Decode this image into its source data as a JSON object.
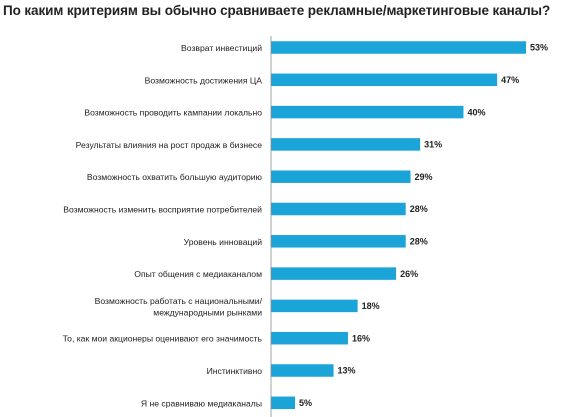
{
  "chart_data": {
    "type": "bar",
    "orientation": "horizontal",
    "title": "По каким критериям вы обычно сравниваете рекламные/маркетинговые каналы?",
    "categories": [
      "Возврат инвестиций",
      "Возможность достижения ЦА",
      "Возможность проводить кампании локально",
      "Результаты влияния на рост продаж в бизнесе",
      "Возможность охватить большую аудиторию",
      "Возможность изменить восприятие потребителей",
      "Уровень инноваций",
      "Опыт общения с медиаканалом",
      "Возможность работать с национальными/ международными рынками",
      "То, как мои акционеры оценивают его значимость",
      "Инстинктивно",
      "Я не сравниваю медиаканалы"
    ],
    "values": [
      53,
      47,
      40,
      31,
      29,
      28,
      28,
      26,
      18,
      16,
      13,
      5
    ],
    "value_labels": [
      "53%",
      "47%",
      "40%",
      "31%",
      "29%",
      "28%",
      "28%",
      "26%",
      "18%",
      "16%",
      "13%",
      "5%"
    ],
    "xlim": [
      0,
      53
    ],
    "bar_color": "#1ba4d8",
    "axis_color": "#8c8c8c",
    "grid": false,
    "legend": "none"
  }
}
